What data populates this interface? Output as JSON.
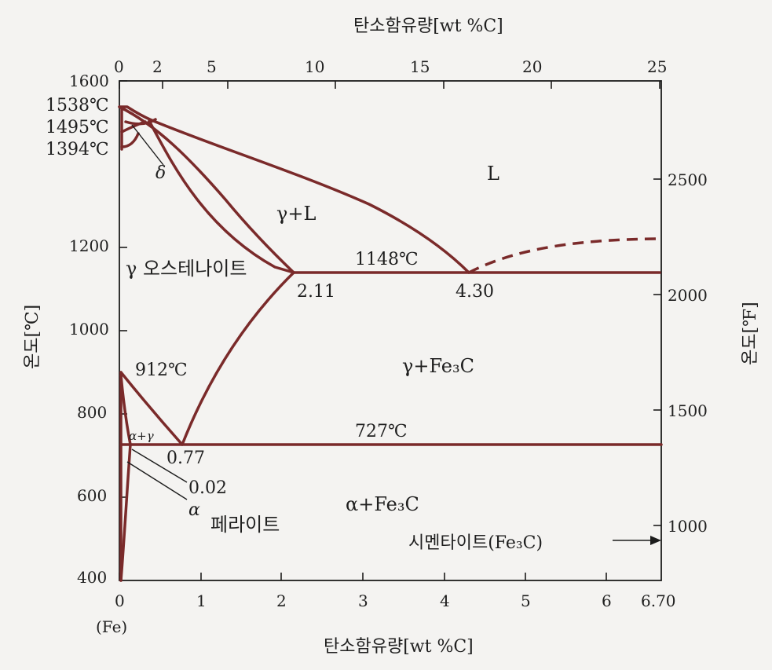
{
  "axes": {
    "top_title": "탄소함유량[wt %C]",
    "bottom_title": "탄소함유량[wt %C]",
    "left_title": "온도[℃]",
    "right_title": "온도[℉]",
    "bottom_origin_note": "(Fe)",
    "top_ticks": [
      "0",
      "2",
      "5",
      "10",
      "15",
      "20",
      "25"
    ],
    "bottom_ticks": [
      "0",
      "1",
      "2",
      "3",
      "4",
      "5",
      "6",
      "6.70"
    ],
    "left_ticks": [
      "1600",
      "1200",
      "1000",
      "800",
      "600",
      "400"
    ],
    "right_ticks": [
      "2500",
      "2000",
      "1500",
      "1000"
    ]
  },
  "labels": {
    "t1538": "1538℃",
    "t1495": "1495℃",
    "t1394": "1394℃",
    "delta": "δ",
    "liquid": "L",
    "gamma_liquid": "γ+L",
    "austenite": "γ 오스테나이트",
    "t1148": "1148℃",
    "c211": "2.11",
    "c430": "4.30",
    "t912": "912℃",
    "gamma_fe3c": "γ+Fe₃C",
    "alpha_gamma": "α+γ",
    "t727": "727℃",
    "c077": "0.77",
    "c002": "0.02",
    "alpha": "α",
    "ferrite": "페라이트",
    "alpha_fe3c": "α+Fe₃C",
    "cementite": "시멘타이트(Fe₃C)"
  },
  "colors": {
    "phase_lines": "#7a2a2a",
    "axes": "#1c1c1c",
    "background": "#f4f3f1"
  },
  "chart_data": {
    "type": "line",
    "xlabel": "탄소함유량[wt %C]",
    "ylabel": "온도[℃]",
    "xlim": [
      0,
      6.7
    ],
    "ylim": [
      400,
      1600
    ],
    "secondary_y_label": "온도[℉]",
    "secondary_x_label": "탄소함유량[wt %C]",
    "series": [
      {
        "values": [
          [
            0,
            1538
          ],
          [
            0.1,
            1495
          ],
          [
            0.5,
            1495
          ],
          [
            2.11,
            1148
          ],
          [
            4.3,
            1148
          ],
          [
            6.7,
            1148
          ]
        ]
      },
      {
        "values": [
          [
            0,
            912
          ],
          [
            0.77,
            727
          ],
          [
            2.11,
            1148
          ]
        ]
      },
      {
        "values": [
          [
            0.02,
            727
          ],
          [
            6.7,
            727
          ]
        ]
      }
    ]
  }
}
